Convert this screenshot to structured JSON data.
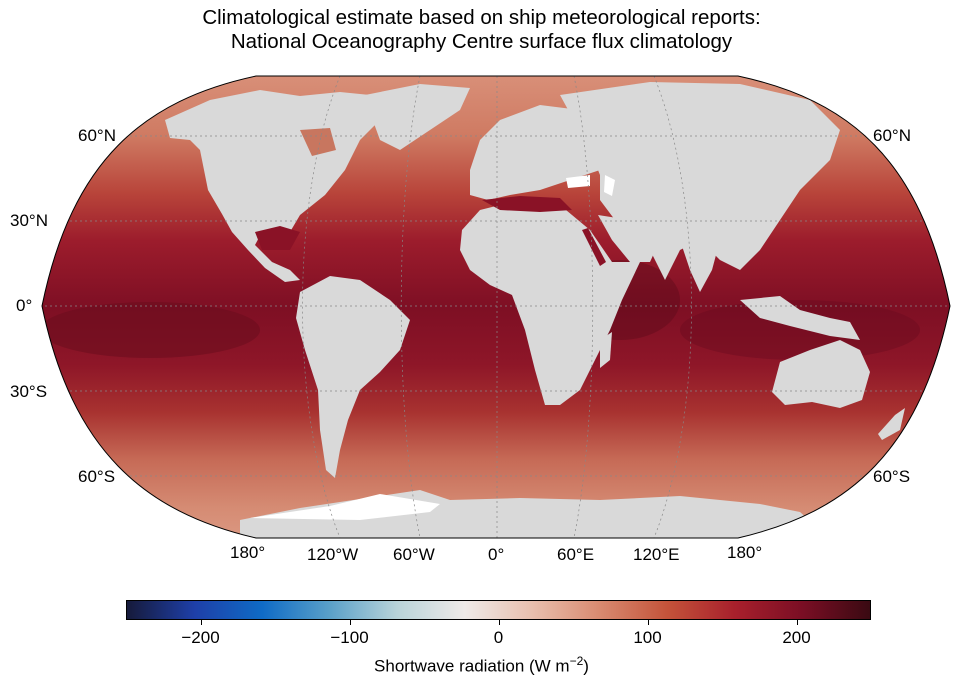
{
  "title": {
    "line1": "Climatological estimate based on ship meteorological reports:",
    "line2": "National Oceanography Centre surface flux climatology"
  },
  "lat_labels": [
    "60°N",
    "30°N",
    "0°",
    "30°S",
    "60°S"
  ],
  "lon_labels": [
    "180°",
    "120°W",
    "60°W",
    "0°",
    "60°E",
    "120°E",
    "180°"
  ],
  "colorbar": {
    "label_main": "Shortwave radiation (W m",
    "label_exp": "−2",
    "label_close": ")",
    "min": -250,
    "max": 250,
    "ticks": [
      {
        "value": -200,
        "label": "−200"
      },
      {
        "value": -100,
        "label": "−100"
      },
      {
        "value": 0,
        "label": "0"
      },
      {
        "value": 100,
        "label": "100"
      },
      {
        "value": 200,
        "label": "200"
      }
    ],
    "colors": [
      "#161a3a",
      "#1e3fa8",
      "#0f6bc6",
      "#5aa0c8",
      "#b9d3d9",
      "#eeeae8",
      "#e8bfae",
      "#d88a70",
      "#c4533a",
      "#a8202c",
      "#7a0e24",
      "#3a0a12"
    ]
  },
  "map": {
    "projection": "Robinson",
    "land_color": "#d9d9d9",
    "ice_color": "#ffffff",
    "ocean_bands": [
      "#d58a72",
      "#c96a55",
      "#b43a32",
      "#9a1a2a",
      "#8a1226",
      "#7a0e22",
      "#8a1226",
      "#a22a30",
      "#c0584a",
      "#d4856e"
    ]
  }
}
